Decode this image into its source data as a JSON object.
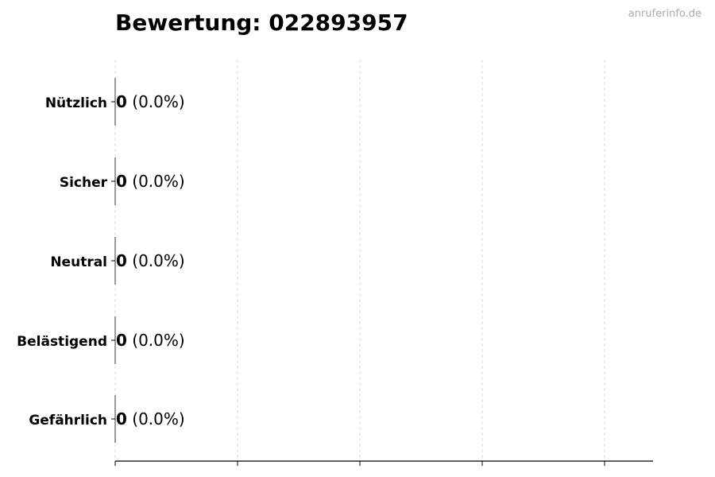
{
  "chart_data": {
    "type": "bar",
    "orientation": "horizontal",
    "title": "Bewertung: 022893957",
    "categories": [
      "Nützlich",
      "Sicher",
      "Neutral",
      "Belästigend",
      "Gefährlich"
    ],
    "values": [
      0,
      0,
      0,
      0,
      0
    ],
    "labels": [
      {
        "count": "0",
        "percent": "(0.0%)"
      },
      {
        "count": "0",
        "percent": "(0.0%)"
      },
      {
        "count": "0",
        "percent": "(0.0%)"
      },
      {
        "count": "0",
        "percent": "(0.0%)"
      },
      {
        "count": "0",
        "percent": "(0.0%)"
      }
    ],
    "xlabel": "",
    "ylabel": "",
    "x_tick_count": 5,
    "x_tick_labels_shown": false,
    "grid": "vertical dashed",
    "colors": {
      "grid": "#dddddd",
      "axis": "#000000",
      "bar": "#000000"
    }
  },
  "watermark": "anruferinfo.de"
}
